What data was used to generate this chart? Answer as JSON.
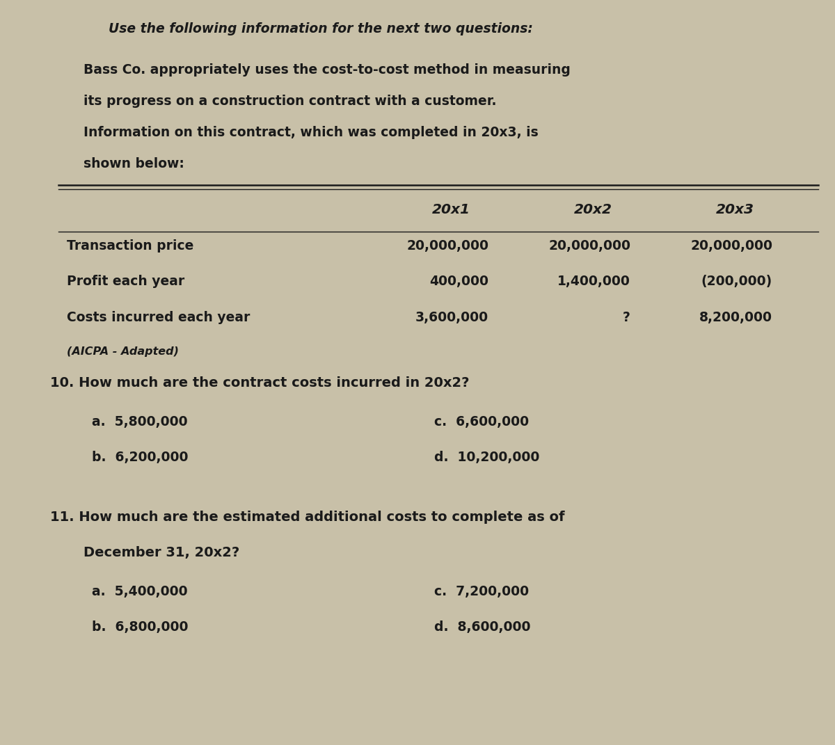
{
  "bg_color": "#c8c0a8",
  "text_color": "#1a1a1a",
  "intro_line": "Use the following information for the next two questions:",
  "paragraph_lines": [
    "Bass Co. appropriately uses the cost-to-cost method in measuring",
    "its progress on a construction contract with a customer.",
    "Information on this contract, which was completed in 20x3, is",
    "shown below:"
  ],
  "table_headers": [
    "",
    "20x1",
    "20x2",
    "20x3"
  ],
  "table_rows": [
    [
      "Transaction price",
      "20,000,000",
      "20,000,000",
      "20,000,000"
    ],
    [
      "Profit each year",
      "400,000",
      "1,400,000",
      "(200,000)"
    ],
    [
      "Costs incurred each year",
      "3,600,000",
      "?",
      "8,200,000"
    ]
  ],
  "source_note": "(AICPA - Adapted)",
  "q10_text": "10. How much are the contract costs incurred in 20x2?",
  "q10_options": [
    [
      "a.  5,800,000",
      "c.  6,600,000"
    ],
    [
      "b.  6,200,000",
      "d.  10,200,000"
    ]
  ],
  "q11_line1": "11. How much are the estimated additional costs to complete as of",
  "q11_line2": "December 31, 20x2?",
  "q11_options": [
    [
      "a.  5,400,000",
      "c.  7,200,000"
    ],
    [
      "b.  6,800,000",
      "d.  8,600,000"
    ]
  ]
}
